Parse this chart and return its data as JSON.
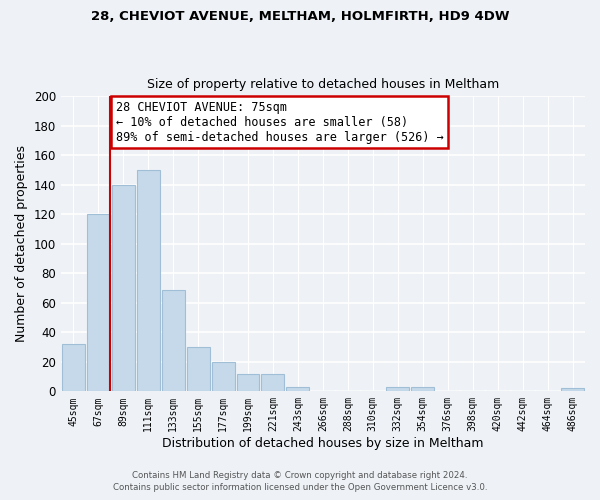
{
  "title1": "28, CHEVIOT AVENUE, MELTHAM, HOLMFIRTH, HD9 4DW",
  "title2": "Size of property relative to detached houses in Meltham",
  "xlabel": "Distribution of detached houses by size in Meltham",
  "ylabel": "Number of detached properties",
  "categories": [
    "45sqm",
    "67sqm",
    "89sqm",
    "111sqm",
    "133sqm",
    "155sqm",
    "177sqm",
    "199sqm",
    "221sqm",
    "243sqm",
    "266sqm",
    "288sqm",
    "310sqm",
    "332sqm",
    "354sqm",
    "376sqm",
    "398sqm",
    "420sqm",
    "442sqm",
    "464sqm",
    "486sqm"
  ],
  "values": [
    32,
    120,
    140,
    150,
    69,
    30,
    20,
    12,
    12,
    3,
    0,
    0,
    0,
    3,
    3,
    0,
    0,
    0,
    0,
    0,
    2
  ],
  "bar_color": "#c5d9ea",
  "bar_edge_color": "#a0bfd6",
  "reference_line_color": "#cc0000",
  "annotation_title": "28 CHEVIOT AVENUE: 75sqm",
  "annotation_line1": "← 10% of detached houses are smaller (58)",
  "annotation_line2": "89% of semi-detached houses are larger (526) →",
  "annotation_box_color": "#ffffff",
  "annotation_box_edge": "#cc0000",
  "ylim": [
    0,
    200
  ],
  "yticks": [
    0,
    20,
    40,
    60,
    80,
    100,
    120,
    140,
    160,
    180,
    200
  ],
  "footer1": "Contains HM Land Registry data © Crown copyright and database right 2024.",
  "footer2": "Contains public sector information licensed under the Open Government Licence v3.0.",
  "bg_color": "#eef2f7"
}
